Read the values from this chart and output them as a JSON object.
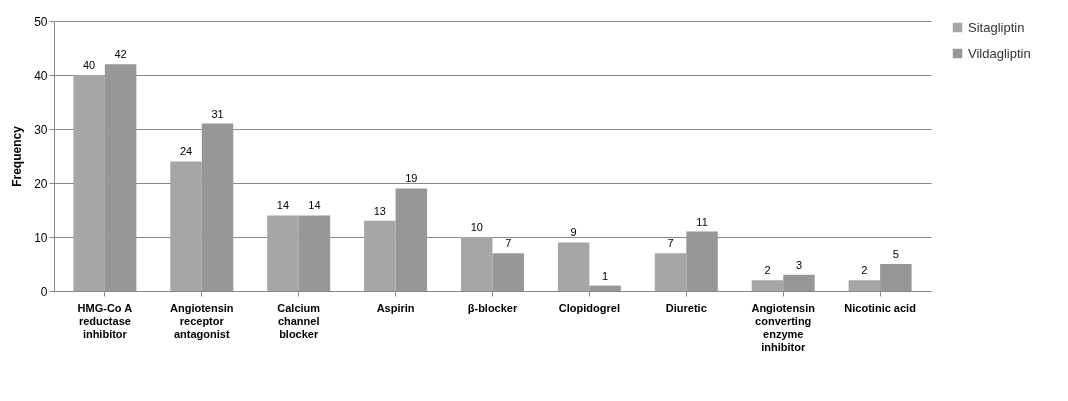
{
  "chart_data": {
    "type": "bar",
    "ylabel": "Frequency",
    "categories": [
      "HMG-Co A reductase inhibitor",
      "Angiotensin receptor antagonist",
      "Calcium channel blocker",
      "Aspirin",
      "β-blocker",
      "Clopidogrel",
      "Diuretic",
      "Angiotensin converting enzyme inhibitor",
      "Nicotinic acid"
    ],
    "series": [
      {
        "name": "Sitagliptin",
        "color": "#a6a6a6",
        "values": [
          40,
          24,
          14,
          13,
          10,
          9,
          7,
          2,
          2
        ]
      },
      {
        "name": "Vildagliptin",
        "color": "#979797",
        "values": [
          42,
          31,
          14,
          19,
          7,
          1,
          11,
          3,
          5
        ]
      }
    ],
    "ylim": [
      0,
      50
    ],
    "yticks": [
      0,
      10,
      20,
      30,
      40,
      50
    ],
    "grid": "y",
    "legend": "right",
    "data_labels": true
  }
}
